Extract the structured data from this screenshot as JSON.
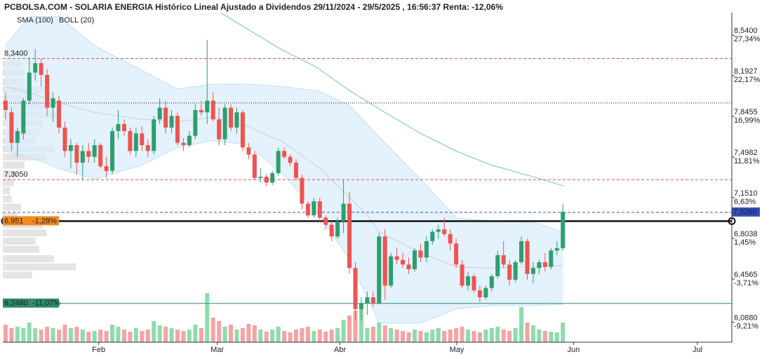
{
  "chart_data": {
    "type": "candlestick",
    "title": "PCBOLSA.COM - SOLARIA ENERGIA Histórico Lineal Ajustado a Dividendos 29/11/2024 - 29/5/2025 , 16:56:37 Renta: -12,06%",
    "legend": [
      {
        "name": "SMA (100)",
        "color": "#8ecae6"
      },
      {
        "name": "BOLL (20)",
        "color": "#b8b8b8"
      }
    ],
    "ylim": [
      5.917,
      8.732
    ],
    "yticks": [
      {
        "value": 8.54,
        "label": "8,5400"
      },
      {
        "value": 8.1927,
        "label": "8,1927"
      },
      {
        "value": 7.8455,
        "label": "7,8455"
      },
      {
        "value": 7.4982,
        "label": "7,4982"
      },
      {
        "value": 7.151,
        "label": "7,1510"
      },
      {
        "value": 6.8038,
        "label": "6,8038"
      },
      {
        "value": 6.4565,
        "label": "6,4565"
      },
      {
        "value": 6.088,
        "label": "6,0880"
      }
    ],
    "ytick_changes": [
      "27,34%",
      "22,17%",
      "16,99%",
      "11,81%",
      "6,63%",
      "1,45%",
      "-3,71%",
      "-9,21%"
    ],
    "xlim": [
      -0.47,
      122.5
    ],
    "xticks": [
      {
        "value": 15.7,
        "label": "Feb"
      },
      {
        "value": 35.7,
        "label": "Mar"
      },
      {
        "value": 56.4,
        "label": "Abr"
      },
      {
        "value": 76.1,
        "label": "May"
      },
      {
        "value": 95.8,
        "label": "Jun"
      },
      {
        "value": 116.7,
        "label": "Jul"
      }
    ],
    "up_color": "#2e9e6e",
    "down_color": "#ef5350",
    "ohlc": [
      [
        7.98,
        8.05,
        7.82,
        7.9
      ],
      [
        7.88,
        7.92,
        7.55,
        7.62
      ],
      [
        7.62,
        7.75,
        7.5,
        7.72
      ],
      [
        7.7,
        8.0,
        7.65,
        7.98
      ],
      [
        7.98,
        8.35,
        7.95,
        8.22
      ],
      [
        8.22,
        8.42,
        8.15,
        8.3
      ],
      [
        8.3,
        8.34,
        8.1,
        8.2
      ],
      [
        8.2,
        8.25,
        7.85,
        7.92
      ],
      [
        7.92,
        8.05,
        7.8,
        8.0
      ],
      [
        7.98,
        8.02,
        7.7,
        7.75
      ],
      [
        7.75,
        7.8,
        7.5,
        7.55
      ],
      [
        7.55,
        7.65,
        7.4,
        7.6
      ],
      [
        7.6,
        7.62,
        7.35,
        7.45
      ],
      [
        7.45,
        7.6,
        7.3,
        7.55
      ],
      [
        7.55,
        7.62,
        7.45,
        7.5
      ],
      [
        7.5,
        7.65,
        7.45,
        7.6
      ],
      [
        7.6,
        7.62,
        7.4,
        7.42
      ],
      [
        7.42,
        7.5,
        7.32,
        7.38
      ],
      [
        7.38,
        7.75,
        7.35,
        7.72
      ],
      [
        7.72,
        7.9,
        7.65,
        7.78
      ],
      [
        7.78,
        7.82,
        7.68,
        7.72
      ],
      [
        7.72,
        7.75,
        7.52,
        7.55
      ],
      [
        7.55,
        7.75,
        7.5,
        7.7
      ],
      [
        7.7,
        7.76,
        7.55,
        7.6
      ],
      [
        7.6,
        7.65,
        7.5,
        7.55
      ],
      [
        7.55,
        7.85,
        7.52,
        7.82
      ],
      [
        7.82,
        8.0,
        7.78,
        7.92
      ],
      [
        7.92,
        7.98,
        7.7,
        7.75
      ],
      [
        7.75,
        7.9,
        7.7,
        7.85
      ],
      [
        7.85,
        7.88,
        7.6,
        7.62
      ],
      [
        7.62,
        7.66,
        7.55,
        7.6
      ],
      [
        7.6,
        7.72,
        7.58,
        7.68
      ],
      [
        7.68,
        7.95,
        7.65,
        7.9
      ],
      [
        7.9,
        7.98,
        7.85,
        7.88
      ],
      [
        7.88,
        8.5,
        7.78,
        7.98
      ],
      [
        7.98,
        8.05,
        7.8,
        7.82
      ],
      [
        7.82,
        7.92,
        7.6,
        7.65
      ],
      [
        7.65,
        7.95,
        7.6,
        7.92
      ],
      [
        7.92,
        7.95,
        7.72,
        7.75
      ],
      [
        7.75,
        7.92,
        7.7,
        7.88
      ],
      [
        7.88,
        7.9,
        7.55,
        7.58
      ],
      [
        7.58,
        7.62,
        7.48,
        7.52
      ],
      [
        7.52,
        7.55,
        7.3,
        7.32
      ],
      [
        7.32,
        7.4,
        7.28,
        7.33
      ],
      [
        7.33,
        7.35,
        7.25,
        7.28
      ],
      [
        7.28,
        7.38,
        7.26,
        7.36
      ],
      [
        7.36,
        7.58,
        7.34,
        7.55
      ],
      [
        7.55,
        7.58,
        7.48,
        7.5
      ],
      [
        7.5,
        7.52,
        7.42,
        7.45
      ],
      [
        7.45,
        7.48,
        7.3,
        7.32
      ],
      [
        7.32,
        7.35,
        7.05,
        7.1
      ],
      [
        7.1,
        7.12,
        6.98,
        7.0
      ],
      [
        7.0,
        7.15,
        6.98,
        7.12
      ],
      [
        7.12,
        7.15,
        6.95,
        6.98
      ],
      [
        6.98,
        7.0,
        6.88,
        6.92
      ],
      [
        6.92,
        6.95,
        6.78,
        6.82
      ],
      [
        6.82,
        6.98,
        6.8,
        6.95
      ],
      [
        6.95,
        7.3,
        6.85,
        7.1
      ],
      [
        7.1,
        7.2,
        6.5,
        6.55
      ],
      [
        6.55,
        6.6,
        6.1,
        6.2
      ],
      [
        6.2,
        6.3,
        6.1,
        6.25
      ],
      [
        6.25,
        6.35,
        6.15,
        6.3
      ],
      [
        6.3,
        6.35,
        6.22,
        6.25
      ],
      [
        6.25,
        6.85,
        6.24,
        6.82
      ],
      [
        6.82,
        6.88,
        6.28,
        6.4
      ],
      [
        6.4,
        6.68,
        6.38,
        6.65
      ],
      [
        6.65,
        6.72,
        6.58,
        6.62
      ],
      [
        6.62,
        6.68,
        6.55,
        6.58
      ],
      [
        6.58,
        6.64,
        6.5,
        6.54
      ],
      [
        6.54,
        6.72,
        6.52,
        6.7
      ],
      [
        6.7,
        6.76,
        6.6,
        6.64
      ],
      [
        6.64,
        6.82,
        6.6,
        6.78
      ],
      [
        6.78,
        6.88,
        6.75,
        6.86
      ],
      [
        6.86,
        6.92,
        6.8,
        6.88
      ],
      [
        6.88,
        6.98,
        6.82,
        6.84
      ],
      [
        6.84,
        6.88,
        6.7,
        6.76
      ],
      [
        6.76,
        6.8,
        6.55,
        6.58
      ],
      [
        6.58,
        6.62,
        6.38,
        6.4
      ],
      [
        6.4,
        6.52,
        6.36,
        6.48
      ],
      [
        6.48,
        6.5,
        6.34,
        6.36
      ],
      [
        6.36,
        6.4,
        6.26,
        6.3
      ],
      [
        6.3,
        6.4,
        6.28,
        6.38
      ],
      [
        6.38,
        6.5,
        6.35,
        6.48
      ],
      [
        6.48,
        6.7,
        6.46,
        6.66
      ],
      [
        6.66,
        6.78,
        6.55,
        6.58
      ],
      [
        6.58,
        6.62,
        6.4,
        6.45
      ],
      [
        6.45,
        6.62,
        6.43,
        6.6
      ],
      [
        6.6,
        6.82,
        6.58,
        6.78
      ],
      [
        6.78,
        6.8,
        6.45,
        6.5
      ],
      [
        6.5,
        6.6,
        6.42,
        6.55
      ],
      [
        6.55,
        6.62,
        6.5,
        6.6
      ],
      [
        6.6,
        6.68,
        6.52,
        6.56
      ],
      [
        6.56,
        6.72,
        6.54,
        6.7
      ],
      [
        6.7,
        6.78,
        6.66,
        6.72
      ],
      [
        6.72,
        7.1,
        6.7,
        7.03
      ]
    ],
    "volume": [
      25,
      20,
      22,
      20,
      28,
      20,
      18,
      22,
      20,
      18,
      25,
      20,
      22,
      18,
      15,
      16,
      18,
      16,
      25,
      22,
      18,
      15,
      20,
      16,
      18,
      30,
      24,
      22,
      20,
      18,
      16,
      18,
      25,
      20,
      70,
      35,
      30,
      22,
      25,
      18,
      20,
      26,
      24,
      18,
      15,
      18,
      22,
      16,
      14,
      18,
      20,
      22,
      16,
      18,
      15,
      18,
      20,
      32,
      38,
      45,
      50,
      20,
      22,
      28,
      24,
      20,
      18,
      16,
      14,
      18,
      16,
      14,
      18,
      20,
      16,
      18,
      20,
      22,
      18,
      16,
      14,
      18,
      20,
      22,
      18,
      16,
      20,
      50,
      28,
      24,
      18,
      16,
      15,
      14,
      28
    ],
    "boll_x": [
      0,
      4,
      9,
      15,
      23,
      29,
      35,
      41,
      47,
      53,
      58,
      61,
      63,
      70,
      76,
      82,
      89,
      94
    ],
    "boll_upper": [
      8.45,
      8.7,
      8.7,
      8.45,
      8.24,
      8.08,
      8.12,
      8.12,
      8.1,
      8.06,
      7.94,
      7.78,
      7.67,
      7.31,
      6.98,
      6.95,
      6.94,
      6.86
    ],
    "boll_lower": [
      7.55,
      7.5,
      7.4,
      7.31,
      7.43,
      7.58,
      7.64,
      7.6,
      7.34,
      7.0,
      6.62,
      6.3,
      6.08,
      6.08,
      6.2,
      6.23,
      6.23,
      6.24
    ],
    "boll_mid": [
      8.1,
      8.05,
      7.96,
      7.88,
      7.82,
      7.8,
      7.84,
      7.76,
      7.62,
      7.4,
      7.16,
      7.0,
      6.86,
      6.68,
      6.56,
      6.55,
      6.56,
      6.57
    ],
    "sma_x": [
      36.3,
      46.4,
      52.3,
      58.2,
      63,
      70,
      76,
      81.9,
      89,
      94.2
    ],
    "sma100": [
      8.73,
      8.42,
      8.27,
      8.06,
      7.91,
      7.7,
      7.55,
      7.43,
      7.33,
      7.25
    ],
    "volume_profile": {
      "prices": [
        8.29,
        8.22,
        8.14,
        8.07,
        8.0,
        7.93,
        7.86,
        7.79,
        7.71,
        7.64,
        7.57,
        7.5,
        7.43,
        7.35,
        7.28,
        7.21,
        7.14,
        7.07,
        6.99,
        6.92,
        6.85,
        6.78,
        6.71,
        6.63,
        6.56,
        6.49
      ],
      "sizes": [
        25,
        30,
        28,
        60,
        50,
        70,
        75,
        55,
        50,
        45,
        70,
        60,
        30,
        20,
        15,
        10,
        12,
        25,
        20,
        55,
        60,
        45,
        50,
        70,
        100,
        40
      ]
    },
    "levels": [
      {
        "value": 8.34,
        "label": "8,3400",
        "style": "dashed",
        "color": "#e05050"
      },
      {
        "value": 7.96,
        "style": "dotted",
        "color": "#111111"
      },
      {
        "value": 7.305,
        "label": "7,3050",
        "style": "dashed",
        "color": "#e05050"
      },
      {
        "value": 7.026,
        "label": "7,0260",
        "style": "dashed",
        "color": "#3050c0",
        "side": "right"
      },
      {
        "value": 6.951,
        "label": "6,951",
        "change": "-1,28%",
        "style": "thick",
        "color": "#111111",
        "box": "#f08c1e"
      },
      {
        "value": 6.248,
        "label": "6,2480",
        "change": "-11,07%",
        "style": "solid",
        "color": "#2e8b6e",
        "box": "#2e8b6e"
      }
    ]
  }
}
